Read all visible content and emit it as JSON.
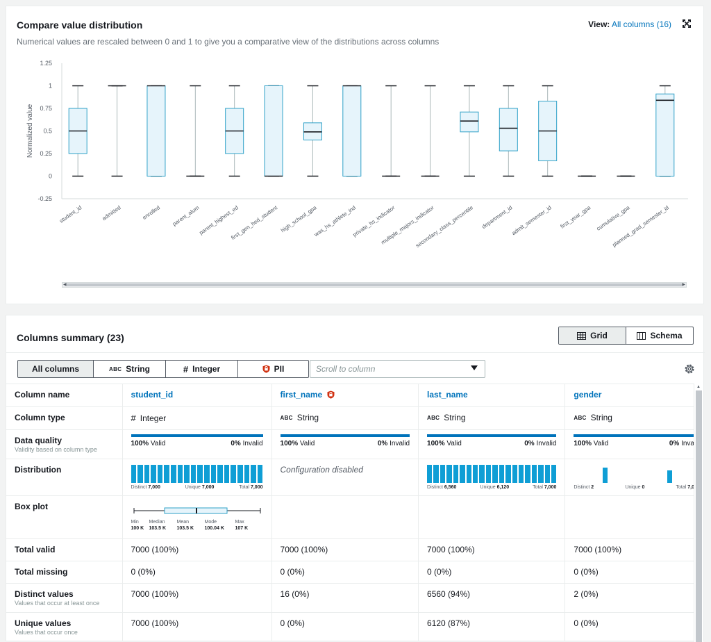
{
  "top": {
    "title": "Compare value distribution",
    "subtitle": "Numerical values are rescaled between 0 and 1 to give you a comparative view of the distributions across columns",
    "view_label": "View:",
    "view_value": "All columns (16)"
  },
  "chart_data": {
    "type": "boxplot",
    "ylabel": "Normalized value",
    "ylim": [
      -0.25,
      1.25
    ],
    "yticks": [
      "1.25",
      "1",
      "0.75",
      "0.5",
      "0.25",
      "0",
      "-0.25"
    ],
    "ytick_values": [
      1.25,
      1,
      0.75,
      0.5,
      0.25,
      0,
      -0.25
    ],
    "categories": [
      "student_id",
      "admitted",
      "enrolled",
      "parent_alum",
      "parent_highest_ed",
      "first_gen_hed_student",
      "high_school_gpa",
      "was_hs_athlete_ind",
      "private_hs_indicator",
      "multiple_majors_indicator",
      "secondary_class_percentile",
      "department_id",
      "admit_semester_id",
      "first_year_gpa",
      "cumulative_gpa",
      "planned_grad_semester_id"
    ],
    "boxes": [
      {
        "min": 0,
        "q1": 0.25,
        "median": 0.5,
        "q3": 0.75,
        "max": 1
      },
      {
        "min": 0,
        "q1": 1,
        "median": 1,
        "q3": 1,
        "max": 1
      },
      {
        "min": 0,
        "q1": 0,
        "median": 1,
        "q3": 1,
        "max": 1
      },
      {
        "min": 0,
        "q1": 0,
        "median": 0,
        "q3": 0,
        "max": 1
      },
      {
        "min": 0,
        "q1": 0.25,
        "median": 0.5,
        "q3": 0.75,
        "max": 1
      },
      {
        "min": 0,
        "q1": 0,
        "median": 0,
        "q3": 1,
        "max": 1
      },
      {
        "min": 0,
        "q1": 0.4,
        "median": 0.49,
        "q3": 0.59,
        "max": 1
      },
      {
        "min": 0,
        "q1": 0,
        "median": 1,
        "q3": 1,
        "max": 1
      },
      {
        "min": 0,
        "q1": 0,
        "median": 0,
        "q3": 0,
        "max": 1
      },
      {
        "min": 0,
        "q1": 0,
        "median": 0,
        "q3": 0,
        "max": 1
      },
      {
        "min": 0,
        "q1": 0.49,
        "median": 0.61,
        "q3": 0.71,
        "max": 1
      },
      {
        "min": 0,
        "q1": 0.28,
        "median": 0.53,
        "q3": 0.75,
        "max": 1
      },
      {
        "min": 0,
        "q1": 0.17,
        "median": 0.5,
        "q3": 0.83,
        "max": 1
      },
      {
        "min": 0,
        "q1": 0,
        "median": 0,
        "q3": 0,
        "max": 0
      },
      {
        "min": 0,
        "q1": 0,
        "median": 0,
        "q3": 0,
        "max": 0
      },
      {
        "min": 0,
        "q1": 0,
        "median": 0.84,
        "q3": 0.91,
        "max": 1
      }
    ]
  },
  "summary": {
    "title": "Columns summary (23)",
    "grid_label": "Grid",
    "schema_label": "Schema",
    "filters": [
      "All columns",
      "String",
      "Integer",
      "PII"
    ],
    "abc": "ABC",
    "hash": "#",
    "scroll_placeholder": "Scroll to column",
    "rows": {
      "column_name": "Column name",
      "column_type": "Column type",
      "data_quality": "Data quality",
      "data_quality_desc": "Validity based on column type",
      "distribution": "Distribution",
      "box_plot": "Box plot",
      "total_valid": "Total valid",
      "total_missing": "Total missing",
      "distinct_values": "Distinct values",
      "distinct_desc": "Values that occur at least once",
      "unique_values": "Unique values",
      "unique_desc": "Values that occur once"
    },
    "columns": [
      {
        "name": "student_id",
        "type": "Integer",
        "valid_pct": "100%",
        "invalid_pct": "0%",
        "valid_lbl": "Valid",
        "invalid_lbl": "Invalid",
        "dist_distinct": "7,000",
        "dist_unique": "7,000",
        "dist_total": "7,000",
        "total_valid": "7000 (100%)",
        "total_missing": "0 (0%)",
        "distinct": "7000 (100%)",
        "unique": "7000 (100%)"
      },
      {
        "name": "first_name",
        "type": "String",
        "valid_pct": "100%",
        "invalid_pct": "0%",
        "valid_lbl": "Valid",
        "invalid_lbl": "Invalid",
        "dist_note": "Configuration disabled",
        "total_valid": "7000 (100%)",
        "total_missing": "0 (0%)",
        "distinct": "16 (0%)",
        "unique": "0 (0%)"
      },
      {
        "name": "last_name",
        "type": "String",
        "valid_pct": "100%",
        "invalid_pct": "0%",
        "valid_lbl": "Valid",
        "invalid_lbl": "Invalid",
        "dist_distinct": "6,560",
        "dist_unique": "6,120",
        "dist_total": "7,000",
        "total_valid": "7000 (100%)",
        "total_missing": "0 (0%)",
        "distinct": "6560 (94%)",
        "unique": "6120 (87%)"
      },
      {
        "name": "gender",
        "type": "String",
        "valid_pct": "100%",
        "invalid_pct": "0%",
        "valid_lbl": "Valid",
        "invalid_lbl": "Inva",
        "dist_distinct": "2",
        "dist_unique": "0",
        "dist_total": "7,0",
        "total_valid": "7000 (100%)",
        "total_missing": "0 (0%)",
        "distinct": "2 (0%)",
        "unique": "0 (0%)"
      }
    ],
    "dist_labels": {
      "distinct": "Distinct",
      "unique": "Unique",
      "total": "Total"
    },
    "boxplot": {
      "labels": [
        "Min",
        "Median",
        "Mean",
        "Mode",
        "Max"
      ],
      "values": [
        "100 K",
        "103.5 K",
        "103.5 K",
        "100.04 K",
        "107 K"
      ]
    }
  },
  "colors": {
    "accent": "#0073bb",
    "box_fill": "#e6f4fb",
    "box_stroke": "#2ea0c7",
    "bar": "#0f9ed5",
    "pii": "#d13212"
  }
}
